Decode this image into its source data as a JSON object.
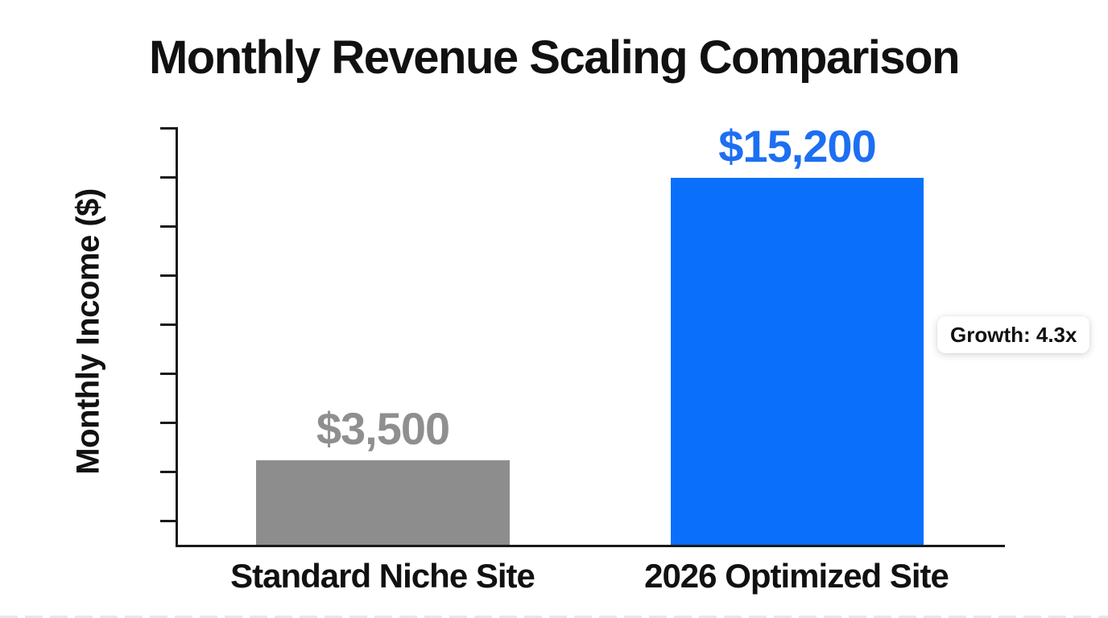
{
  "chart_data": {
    "type": "bar",
    "title": "Monthly Revenue Scaling Comparison",
    "xlabel": "",
    "ylabel": "Monthly Income ($)",
    "categories": [
      "Standard Niche Site",
      "2026 Optimized Site"
    ],
    "values": [
      3500,
      15200
    ],
    "value_labels": [
      "$3,500",
      "$15,200"
    ],
    "bar_colors": [
      "#8d8d8d",
      "#0a6ffa"
    ],
    "value_label_colors": [
      "#8f8f8f",
      "#1d6ff2"
    ],
    "annotation": "Growth: 4.3x",
    "ylim": [
      0,
      17300
    ],
    "y_tick_count": 9,
    "y_tick_labels_visible": false,
    "grid": false,
    "legend_position": "none",
    "annotation_position": "right-of-tall-bar"
  },
  "colors": {
    "background": "#ffffff",
    "axis": "#1a1a1a",
    "title_text": "#111111",
    "axis_label_text": "#111111",
    "badge_background": "#ffffff",
    "badge_text": "#111111"
  }
}
